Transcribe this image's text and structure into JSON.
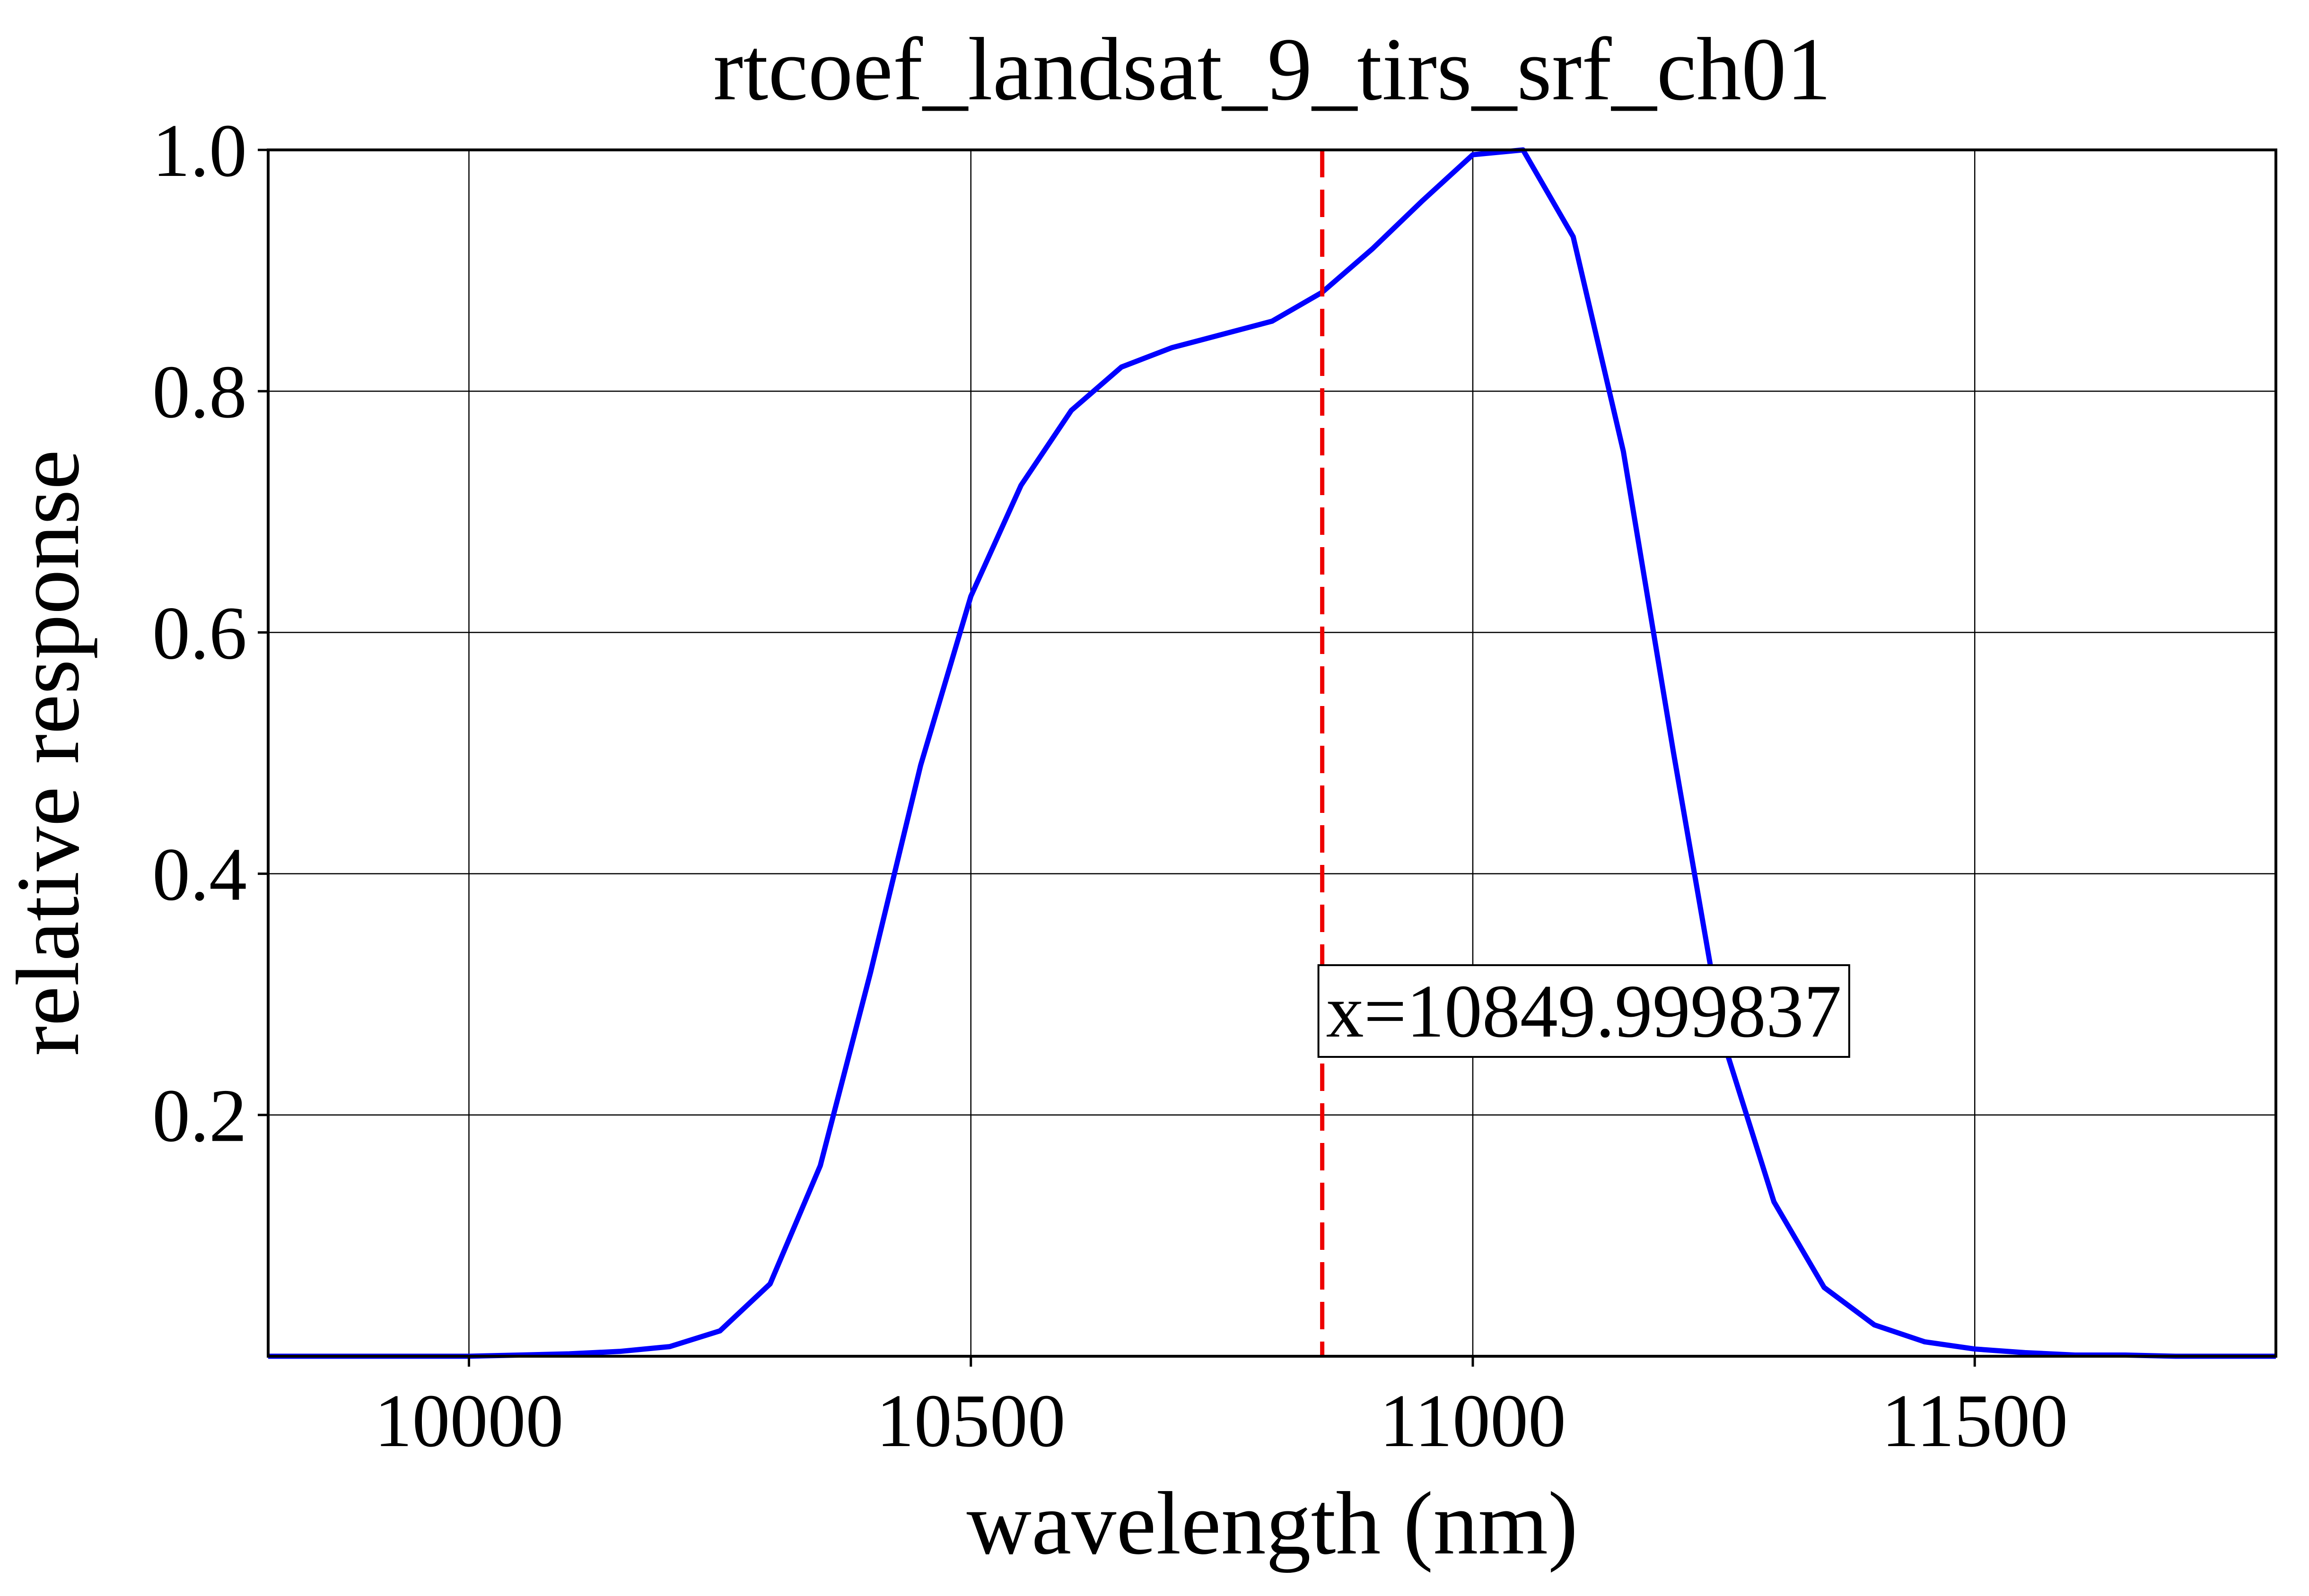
{
  "chart_data": {
    "type": "line",
    "title": "rtcoef_landsat_9_tirs_srf_ch01",
    "xlabel": "wavelength (nm)",
    "ylabel": "relative response",
    "xlim": [
      9800,
      11800
    ],
    "ylim": [
      0,
      1.0
    ],
    "xticks": [
      10000,
      10500,
      11000,
      11500
    ],
    "xtick_labels": [
      "10000",
      "10500",
      "11000",
      "11500"
    ],
    "yticks": [
      0.2,
      0.4,
      0.6,
      0.8,
      1.0
    ],
    "ytick_labels": [
      "0.2",
      "0.4",
      "0.6",
      "0.8",
      "1.0"
    ],
    "grid": true,
    "series": [
      {
        "color": "#0000ff",
        "x": [
          9800,
          9850,
          9900,
          9950,
          10000,
          10050,
          10100,
          10150,
          10200,
          10250,
          10300,
          10350,
          10400,
          10450,
          10500,
          10550,
          10600,
          10650,
          10700,
          10750,
          10800,
          10850,
          10900,
          10950,
          11000,
          11050,
          11100,
          11150,
          11200,
          11250,
          11300,
          11350,
          11400,
          11450,
          11500,
          11550,
          11600,
          11650,
          11700,
          11750,
          11800
        ],
        "y": [
          0.0,
          0.0,
          0.0,
          0.0,
          0.0,
          0.001,
          0.002,
          0.004,
          0.008,
          0.021,
          0.06,
          0.158,
          0.318,
          0.49,
          0.63,
          0.722,
          0.784,
          0.82,
          0.836,
          0.847,
          0.858,
          0.882,
          0.918,
          0.958,
          0.996,
          1.0,
          0.928,
          0.75,
          0.5,
          0.26,
          0.128,
          0.057,
          0.026,
          0.012,
          0.006,
          0.003,
          0.001,
          0.001,
          0.0,
          0.0,
          0.0
        ]
      }
    ],
    "vline": {
      "x": 10849.999837,
      "color": "#ee0000",
      "style": "dashed"
    },
    "annotation": {
      "text": "x=10849.999837",
      "x": 10849.999837,
      "y": 0.265
    }
  }
}
